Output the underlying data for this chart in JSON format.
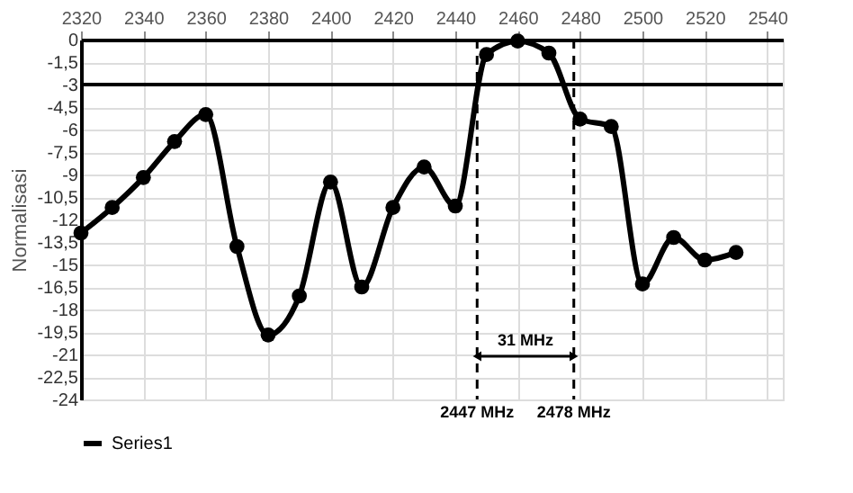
{
  "chart_data": {
    "type": "line",
    "ylabel": "Normalisasi",
    "x": [
      2320,
      2330,
      2340,
      2350,
      2360,
      2370,
      2380,
      2390,
      2400,
      2410,
      2420,
      2430,
      2440,
      2450,
      2460,
      2470,
      2480,
      2490,
      2500,
      2510,
      2520,
      2530
    ],
    "series": [
      {
        "name": "Series1",
        "color": "#000000",
        "values": [
          -12.9,
          -11.2,
          -9.2,
          -6.8,
          -5.0,
          -13.8,
          -19.7,
          -17.1,
          -9.5,
          -16.5,
          -11.2,
          -8.5,
          -11.1,
          -1.0,
          -0.1,
          -0.9,
          -5.3,
          -5.8,
          -16.3,
          -13.2,
          -14.7,
          -14.2
        ]
      }
    ],
    "xlim": [
      2320,
      2545
    ],
    "xticks": [
      2320,
      2340,
      2360,
      2380,
      2400,
      2420,
      2440,
      2460,
      2480,
      2500,
      2520,
      2540
    ],
    "ylim": [
      -24,
      0
    ],
    "yticks": [
      0,
      {
        "value": -1.5,
        "label": "-1,5"
      },
      -3,
      {
        "value": -4.5,
        "label": "-4,5"
      },
      -6,
      {
        "value": -7.5,
        "label": "-7,5"
      },
      -9,
      {
        "value": -10.5,
        "label": "-10,5"
      },
      -12,
      {
        "value": -13.5,
        "label": "-13,5"
      },
      -15,
      {
        "value": -16.5,
        "label": "-16,5"
      },
      -18,
      {
        "value": -19.5,
        "label": "-19,5"
      },
      -21,
      {
        "value": -22.5,
        "label": "-22,5"
      },
      -24
    ],
    "ref_lines": [
      {
        "axis": "y",
        "value": -3,
        "label": null,
        "color": "#000000",
        "line_style": "solid"
      },
      {
        "axis": "x",
        "value": 2447,
        "label": "2447 MHz",
        "color": "#000000",
        "line_style": "dashed"
      },
      {
        "axis": "x",
        "value": 2478,
        "label": "2478 MHz",
        "color": "#000000",
        "line_style": "dashed"
      }
    ],
    "annotations": [
      "31 MHz"
    ],
    "grid": true,
    "legend": "bottom",
    "marker": "circle",
    "line_style": "solid"
  }
}
